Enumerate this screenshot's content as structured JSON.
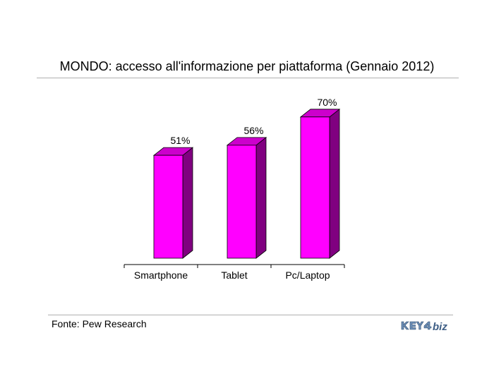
{
  "title": "MONDO: accesso all'informazione per piattaforma (Gennaio 2012)",
  "source": "Fonte: Pew Research",
  "logo": {
    "text": "KEY4biz",
    "color_key": "#6d8fb7",
    "color_biz": "#3f5f86"
  },
  "chart_data": {
    "type": "bar",
    "title": "MONDO: accesso all'informazione per piattaforma (Gennaio 2012)",
    "categories": [
      "Smartphone",
      "Tablet",
      "Pc/Laptop"
    ],
    "values": [
      51,
      56,
      70
    ],
    "value_labels": [
      "51%",
      "56%",
      "70%"
    ],
    "unit": "%",
    "ylim": [
      0,
      100
    ],
    "three_d": true,
    "grid": false,
    "legend": "none",
    "colors": {
      "front": "#ff00ff",
      "side": "#800080",
      "top": "#cc00cc"
    }
  }
}
